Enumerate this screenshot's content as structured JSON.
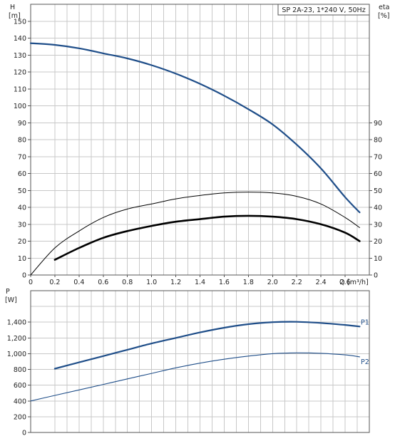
{
  "chart_data": [
    {
      "type": "line",
      "title": "SP 2A-23, 1*240 V, 50Hz",
      "ylabel": "H",
      "yunit": "[m]",
      "y2label": "eta",
      "y2unit": "[%]",
      "xlabel": "Q",
      "xunit": "[m³/h]",
      "xlim": [
        0,
        2.8
      ],
      "ylim": [
        0,
        160
      ],
      "y2lim": [
        0,
        160
      ],
      "grid": true,
      "x_ticks": [
        "0",
        "0.2",
        "0.4",
        "0.6",
        "0.8",
        "1.0",
        "1.2",
        "1.4",
        "1.6",
        "1.8",
        "2.0",
        "2.2",
        "2.4",
        "2.6"
      ],
      "y_ticks": [
        "0",
        "10",
        "20",
        "30",
        "40",
        "50",
        "60",
        "70",
        "80",
        "90",
        "100",
        "110",
        "120",
        "130",
        "140",
        "150"
      ],
      "y2_ticks": [
        "0",
        "10",
        "20",
        "30",
        "40",
        "50",
        "60",
        "70",
        "80",
        "90"
      ],
      "series": [
        {
          "color": "#1f4e89",
          "x": [
            0,
            0.2,
            0.4,
            0.6,
            0.8,
            1.0,
            1.2,
            1.4,
            1.6,
            1.8,
            2.0,
            2.2,
            2.4,
            2.6,
            2.72
          ],
          "y": [
            137,
            136,
            134,
            131,
            128,
            124,
            119,
            113,
            106,
            98,
            89,
            77,
            63,
            46,
            37
          ]
        },
        {
          "color": "#000000",
          "x": [
            0,
            0.2,
            0.4,
            0.6,
            0.8,
            1.0,
            1.2,
            1.4,
            1.6,
            1.8,
            2.0,
            2.2,
            2.4,
            2.6,
            2.72
          ],
          "y": [
            0,
            16,
            26,
            34,
            39,
            42,
            45,
            47,
            48.5,
            49,
            48.5,
            46.5,
            42,
            34,
            28
          ]
        },
        {
          "color": "#000000",
          "x": [
            0.2,
            0.4,
            0.6,
            0.8,
            1.0,
            1.2,
            1.4,
            1.6,
            1.8,
            2.0,
            2.2,
            2.4,
            2.6,
            2.72
          ],
          "y": [
            9,
            16,
            22,
            26,
            29,
            31.5,
            33,
            34.5,
            35,
            34.5,
            33,
            30,
            25,
            20
          ]
        }
      ]
    },
    {
      "type": "line",
      "ylabel": "P",
      "yunit": "[W]",
      "xlim": [
        0,
        2.8
      ],
      "ylim": [
        0,
        1800
      ],
      "grid": true,
      "y_ticks": [
        "0",
        "200",
        "400",
        "600",
        "800",
        "1,000",
        "1,200",
        "1,400"
      ],
      "series": [
        {
          "name": "P1",
          "color": "#1f4e89",
          "x": [
            0.2,
            0.4,
            0.6,
            0.8,
            1.0,
            1.2,
            1.4,
            1.6,
            1.8,
            2.0,
            2.2,
            2.4,
            2.6,
            2.72
          ],
          "y": [
            810,
            890,
            970,
            1050,
            1130,
            1200,
            1270,
            1330,
            1375,
            1400,
            1405,
            1390,
            1365,
            1345
          ]
        },
        {
          "name": "P2",
          "color": "#1f4e89",
          "x": [
            0,
            0.2,
            0.4,
            0.6,
            0.8,
            1.0,
            1.2,
            1.4,
            1.6,
            1.8,
            2.0,
            2.2,
            2.4,
            2.6,
            2.72
          ],
          "y": [
            400,
            470,
            540,
            610,
            680,
            750,
            820,
            880,
            930,
            970,
            1000,
            1010,
            1005,
            985,
            960
          ]
        }
      ]
    }
  ]
}
